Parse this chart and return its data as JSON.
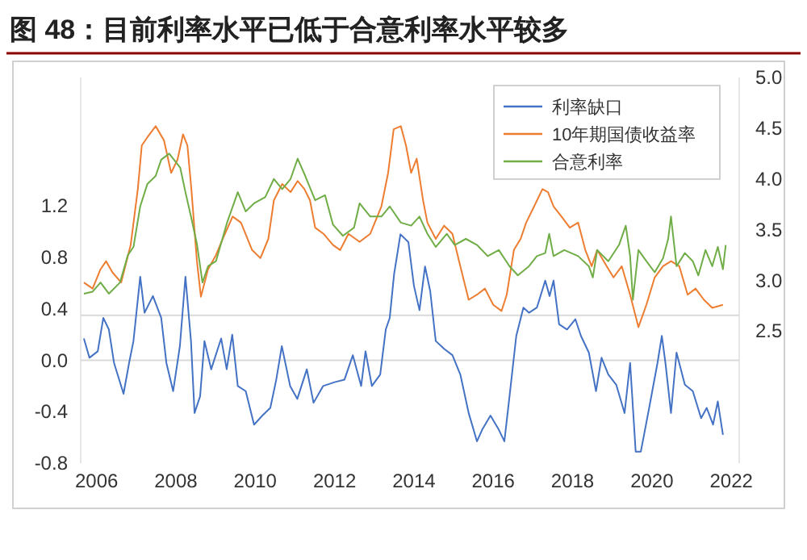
{
  "chart_data": {
    "type": "line",
    "title": "图 48：目前利率水平已低于合意利率水平较多",
    "xlim": [
      2005.6,
      2022.2
    ],
    "xticks": [
      2006,
      2008,
      2010,
      2012,
      2014,
      2016,
      2018,
      2020,
      2022
    ],
    "ylim": [
      -0.8,
      2.2
    ],
    "yticks": [
      {
        "value": -0.8,
        "label": "-0.8"
      },
      {
        "value": -0.4,
        "label": "-0.4"
      },
      {
        "value": 0,
        "label": "0.0"
      },
      0.4,
      0.8,
      1.2
    ],
    "y2lim": [
      1.2,
      5.0
    ],
    "y2ticks": [
      2.5,
      {
        "value": 3,
        "label": "3.0"
      },
      3.5,
      {
        "value": 4,
        "label": "4.0"
      },
      4.5,
      {
        "value": 5,
        "label": "5.0"
      }
    ],
    "legend": "top right",
    "grid": false,
    "ref_lines": [
      {
        "axis": "y",
        "value": 0,
        "color": "#d9d9d9"
      },
      {
        "axis": "y",
        "value": 0.35,
        "color": "#d9d9d9"
      }
    ],
    "series": [
      {
        "name": "利率缺口",
        "color": "#4472c4",
        "axis": "y",
        "x": [
          2005.68,
          2005.82,
          2006.03,
          2006.17,
          2006.31,
          2006.44,
          2006.68,
          2006.82,
          2006.93,
          2007.1,
          2007.21,
          2007.42,
          2007.63,
          2007.76,
          2007.93,
          2008.1,
          2008.24,
          2008.38,
          2008.47,
          2008.61,
          2008.72,
          2008.89,
          2009.14,
          2009.28,
          2009.42,
          2009.56,
          2009.76,
          2009.97,
          2010.18,
          2010.38,
          2010.53,
          2010.67,
          2010.88,
          2011.06,
          2011.3,
          2011.47,
          2011.71,
          2012.0,
          2012.25,
          2012.46,
          2012.67,
          2012.78,
          2012.94,
          2013.15,
          2013.29,
          2013.39,
          2013.5,
          2013.66,
          2013.86,
          2014.0,
          2014.14,
          2014.28,
          2014.41,
          2014.55,
          2014.76,
          2014.97,
          2015.17,
          2015.38,
          2015.59,
          2015.72,
          2015.93,
          2016.14,
          2016.28,
          2016.41,
          2016.58,
          2016.76,
          2016.9,
          2017.1,
          2017.31,
          2017.42,
          2017.52,
          2017.66,
          2017.86,
          2018.07,
          2018.21,
          2018.41,
          2018.59,
          2018.73,
          2018.9,
          2019.1,
          2019.31,
          2019.45,
          2019.59,
          2019.72,
          2019.93,
          2020.14,
          2020.25,
          2020.34,
          2020.48,
          2020.62,
          2020.83,
          2021.03,
          2021.24,
          2021.38,
          2021.54,
          2021.66,
          2021.79
        ],
        "values": [
          0.17,
          0.02,
          0.07,
          0.33,
          0.24,
          -0.02,
          -0.26,
          -0.02,
          0.15,
          0.65,
          0.37,
          0.5,
          0.33,
          -0.02,
          -0.24,
          0.11,
          0.65,
          0.15,
          -0.41,
          -0.28,
          0.15,
          -0.07,
          0.17,
          -0.07,
          0.2,
          -0.2,
          -0.24,
          -0.5,
          -0.43,
          -0.37,
          -0.15,
          0.11,
          -0.2,
          -0.3,
          -0.07,
          -0.33,
          -0.2,
          -0.17,
          -0.15,
          0.04,
          -0.2,
          0.07,
          -0.2,
          -0.11,
          0.24,
          0.33,
          0.67,
          0.98,
          0.92,
          0.58,
          0.39,
          0.73,
          0.54,
          0.15,
          0.09,
          0.04,
          -0.11,
          -0.41,
          -0.63,
          -0.54,
          -0.43,
          -0.54,
          -0.63,
          -0.28,
          0.19,
          0.41,
          0.37,
          0.41,
          0.62,
          0.5,
          0.62,
          0.28,
          0.24,
          0.32,
          0.19,
          0.06,
          -0.24,
          0.02,
          -0.11,
          -0.19,
          -0.41,
          -0.02,
          -0.71,
          -0.71,
          -0.37,
          -0.02,
          0.19,
          -0.02,
          -0.41,
          0.06,
          -0.19,
          -0.24,
          -0.45,
          -0.37,
          -0.5,
          -0.32,
          -0.58
        ]
      },
      {
        "name": "10年期国债收益率",
        "color": "#ed7d31",
        "axis": "y2",
        "x": [
          2005.68,
          2005.9,
          2006.1,
          2006.24,
          2006.4,
          2006.62,
          2006.86,
          2007.04,
          2007.14,
          2007.28,
          2007.49,
          2007.7,
          2007.88,
          2008.04,
          2008.18,
          2008.29,
          2008.39,
          2008.53,
          2008.63,
          2008.81,
          2009.01,
          2009.18,
          2009.43,
          2009.64,
          2009.92,
          2010.13,
          2010.33,
          2010.47,
          2010.68,
          2010.89,
          2011.07,
          2011.24,
          2011.38,
          2011.51,
          2011.72,
          2011.96,
          2012.14,
          2012.35,
          2012.63,
          2012.9,
          2013.18,
          2013.35,
          2013.49,
          2013.67,
          2013.8,
          2013.93,
          2014.07,
          2014.23,
          2014.34,
          2014.55,
          2014.76,
          2014.97,
          2015.17,
          2015.38,
          2015.59,
          2015.79,
          2016.0,
          2016.21,
          2016.34,
          2016.52,
          2016.69,
          2016.83,
          2017.03,
          2017.24,
          2017.38,
          2017.52,
          2017.72,
          2017.93,
          2018.14,
          2018.32,
          2018.48,
          2018.62,
          2018.83,
          2019.03,
          2019.24,
          2019.45,
          2019.66,
          2019.86,
          2020.07,
          2020.28,
          2020.48,
          2020.69,
          2020.9,
          2021.1,
          2021.31,
          2021.52,
          2021.79
        ],
        "values": [
          2.98,
          2.92,
          3.11,
          3.19,
          3.08,
          2.98,
          3.35,
          3.9,
          4.33,
          4.41,
          4.52,
          4.38,
          4.06,
          4.19,
          4.44,
          4.33,
          3.9,
          3.19,
          2.84,
          3.11,
          3.25,
          3.41,
          3.63,
          3.57,
          3.3,
          3.22,
          3.41,
          3.79,
          3.95,
          3.87,
          3.98,
          3.9,
          3.79,
          3.52,
          3.46,
          3.35,
          3.3,
          3.46,
          3.38,
          3.46,
          3.73,
          4.06,
          4.49,
          4.52,
          4.33,
          4.06,
          4.2,
          3.79,
          3.57,
          3.41,
          3.54,
          3.46,
          3.14,
          2.81,
          2.86,
          2.92,
          2.76,
          2.7,
          2.86,
          3.3,
          3.41,
          3.57,
          3.73,
          3.9,
          3.87,
          3.73,
          3.63,
          3.52,
          3.57,
          3.3,
          3.14,
          3.3,
          3.16,
          3.03,
          3.14,
          2.86,
          2.54,
          2.76,
          3.03,
          3.14,
          3.19,
          3.14,
          2.86,
          2.92,
          2.81,
          2.73,
          2.76
        ]
      },
      {
        "name": "合意利率",
        "color": "#70ad47",
        "axis": "y2",
        "x": [
          2005.68,
          2005.9,
          2006.1,
          2006.31,
          2006.59,
          2006.79,
          2006.93,
          2007.1,
          2007.28,
          2007.49,
          2007.63,
          2007.83,
          2008.11,
          2008.24,
          2008.38,
          2008.53,
          2008.67,
          2008.81,
          2009.01,
          2009.29,
          2009.56,
          2009.76,
          2009.97,
          2010.25,
          2010.47,
          2010.68,
          2010.89,
          2011.07,
          2011.26,
          2011.51,
          2011.76,
          2011.96,
          2012.21,
          2012.49,
          2012.63,
          2012.9,
          2013.18,
          2013.39,
          2013.67,
          2013.93,
          2014.14,
          2014.34,
          2014.55,
          2014.83,
          2015.03,
          2015.31,
          2015.59,
          2015.86,
          2016.14,
          2016.41,
          2016.62,
          2016.9,
          2017.1,
          2017.31,
          2017.41,
          2017.52,
          2017.79,
          2018.14,
          2018.41,
          2018.51,
          2018.62,
          2018.9,
          2019.17,
          2019.34,
          2019.45,
          2019.52,
          2019.66,
          2019.86,
          2020.07,
          2020.28,
          2020.41,
          2020.48,
          2020.62,
          2020.83,
          2021.03,
          2021.17,
          2021.35,
          2021.52,
          2021.66,
          2021.79,
          2021.86
        ],
        "values": [
          2.87,
          2.89,
          2.98,
          2.87,
          2.98,
          3.25,
          3.33,
          3.73,
          3.95,
          4.03,
          4.19,
          4.25,
          4.11,
          3.87,
          3.63,
          3.36,
          2.98,
          3.14,
          3.19,
          3.57,
          3.87,
          3.68,
          3.76,
          3.82,
          4.0,
          3.9,
          4.0,
          4.2,
          4.03,
          3.79,
          3.84,
          3.55,
          3.44,
          3.52,
          3.76,
          3.63,
          3.63,
          3.73,
          3.57,
          3.54,
          3.63,
          3.46,
          3.33,
          3.46,
          3.35,
          3.41,
          3.35,
          3.24,
          3.3,
          3.14,
          3.05,
          3.14,
          3.24,
          3.27,
          3.46,
          3.24,
          3.3,
          3.24,
          3.14,
          3.03,
          3.3,
          3.19,
          3.35,
          3.54,
          3.24,
          2.81,
          3.3,
          3.19,
          3.08,
          3.22,
          3.41,
          3.63,
          3.14,
          3.27,
          3.19,
          3.05,
          3.3,
          3.14,
          3.33,
          3.11,
          3.35
        ]
      }
    ]
  }
}
